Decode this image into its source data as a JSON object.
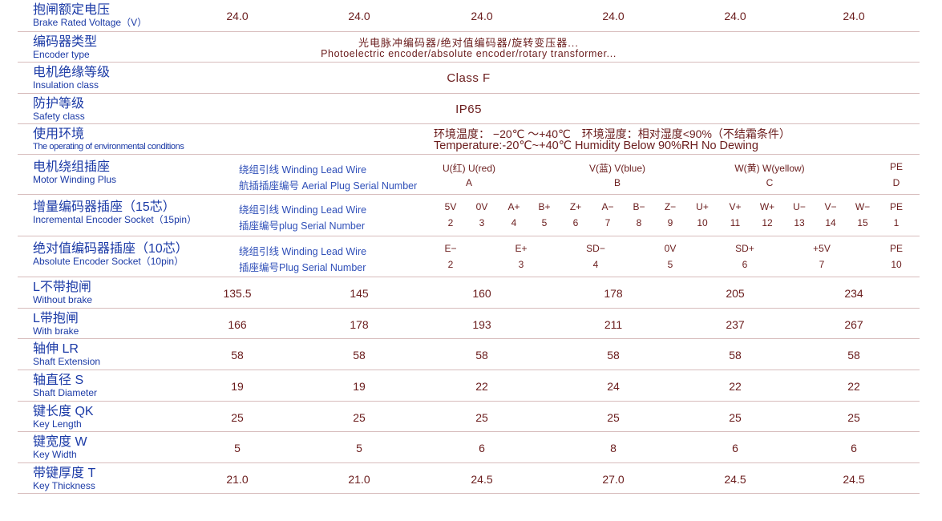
{
  "colors": {
    "label": "#1b3aa6",
    "value": "#6a1c1c",
    "divider": "#d7bcbc"
  },
  "rows": [
    {
      "cn": "抱闸额定电压",
      "en": "Brake Rated Voltage（V）",
      "values": [
        "24.0",
        "24.0",
        "24.0",
        "24.0",
        "24.0",
        "24.0"
      ]
    },
    {
      "cn": "编码器类型",
      "en": "Encoder type",
      "center": [
        "光电脉冲编码器/绝对值编码器/旋转变压器...",
        "Photoelectric encoder/absolute encoder/rotary transformer..."
      ]
    },
    {
      "cn": "电机绝缘等级",
      "en": "Insulation class",
      "center": [
        "Class F"
      ]
    },
    {
      "cn": "防护等级",
      "en": "Safety class",
      "center": [
        "IP65"
      ]
    },
    {
      "cn": "使用环境",
      "en": "The operating of environmental conditions",
      "env": [
        "环境温度： −20℃ ～+40℃　环境湿度：相对湿度<90%（不结霜条件）",
        "Temperature:-20℃~+40℃  Humidity Below 90%RH No Dewing"
      ]
    },
    {
      "cn": "电机绕组插座",
      "en": "Motor Winding Plus",
      "sub": [
        "绕组引线 Winding Lead Wire",
        "航插插座编号 Aerial Plug Serial Number"
      ],
      "pins": [
        [
          "U(红) U(red)",
          "A"
        ],
        [
          "V(蓝) V(blue)",
          "B"
        ],
        [
          "W(黄) W(yellow)",
          "C"
        ],
        [
          "PE",
          "D"
        ]
      ]
    },
    {
      "cn": "增量编码器插座（15芯）",
      "en": "Incremental Encoder Socket（15pin）",
      "sub": [
        "绕组引线 Winding Lead Wire",
        "插座编号plug Serial Number"
      ],
      "pins": [
        [
          "5V",
          "2"
        ],
        [
          "0V",
          "3"
        ],
        [
          "A+",
          "4"
        ],
        [
          "B+",
          "5"
        ],
        [
          "Z+",
          "6"
        ],
        [
          "A−",
          "7"
        ],
        [
          "B−",
          "8"
        ],
        [
          "Z−",
          "9"
        ],
        [
          "U+",
          "10"
        ],
        [
          "V+",
          "11"
        ],
        [
          "W+",
          "12"
        ],
        [
          "U−",
          "13"
        ],
        [
          "V−",
          "14"
        ],
        [
          "W−",
          "15"
        ],
        [
          "PE",
          "1"
        ]
      ]
    },
    {
      "cn": "绝对值编码器插座（10芯）",
      "en": "Absolute Encoder Socket（10pin）",
      "sub": [
        "绕组引线 Winding Lead Wire",
        "插座编号Plug Serial Number"
      ],
      "pins": [
        [
          "E−",
          "2"
        ],
        [
          "E+",
          "3"
        ],
        [
          "SD−",
          "4"
        ],
        [
          "0V",
          "5"
        ],
        [
          "SD+",
          "6"
        ],
        [
          "+5V",
          "7"
        ],
        [
          "PE",
          "10"
        ]
      ]
    },
    {
      "cn": "L不带抱闸",
      "en": "Without brake",
      "values": [
        "135.5",
        "145",
        "160",
        "178",
        "205",
        "234"
      ]
    },
    {
      "cn": "L带抱闸",
      "en": "With brake",
      "values": [
        "166",
        "178",
        "193",
        "211",
        "237",
        "267"
      ]
    },
    {
      "cn": "轴伸 LR",
      "en": "Shaft Extension",
      "values": [
        "58",
        "58",
        "58",
        "58",
        "58",
        "58"
      ]
    },
    {
      "cn": "轴直径 S",
      "en": "Shaft Diameter",
      "values": [
        "19",
        "19",
        "22",
        "24",
        "22",
        "22"
      ]
    },
    {
      "cn": "键长度 QK",
      "en": "Key Length",
      "values": [
        "25",
        "25",
        "25",
        "25",
        "25",
        "25"
      ]
    },
    {
      "cn": "键宽度 W",
      "en": "Key Width",
      "values": [
        "5",
        "5",
        "6",
        "8",
        "6",
        "6"
      ]
    },
    {
      "cn": "带键厚度 T",
      "en": "Key Thickness",
      "values": [
        "21.0",
        "21.0",
        "24.5",
        "27.0",
        "24.5",
        "24.5"
      ]
    }
  ]
}
